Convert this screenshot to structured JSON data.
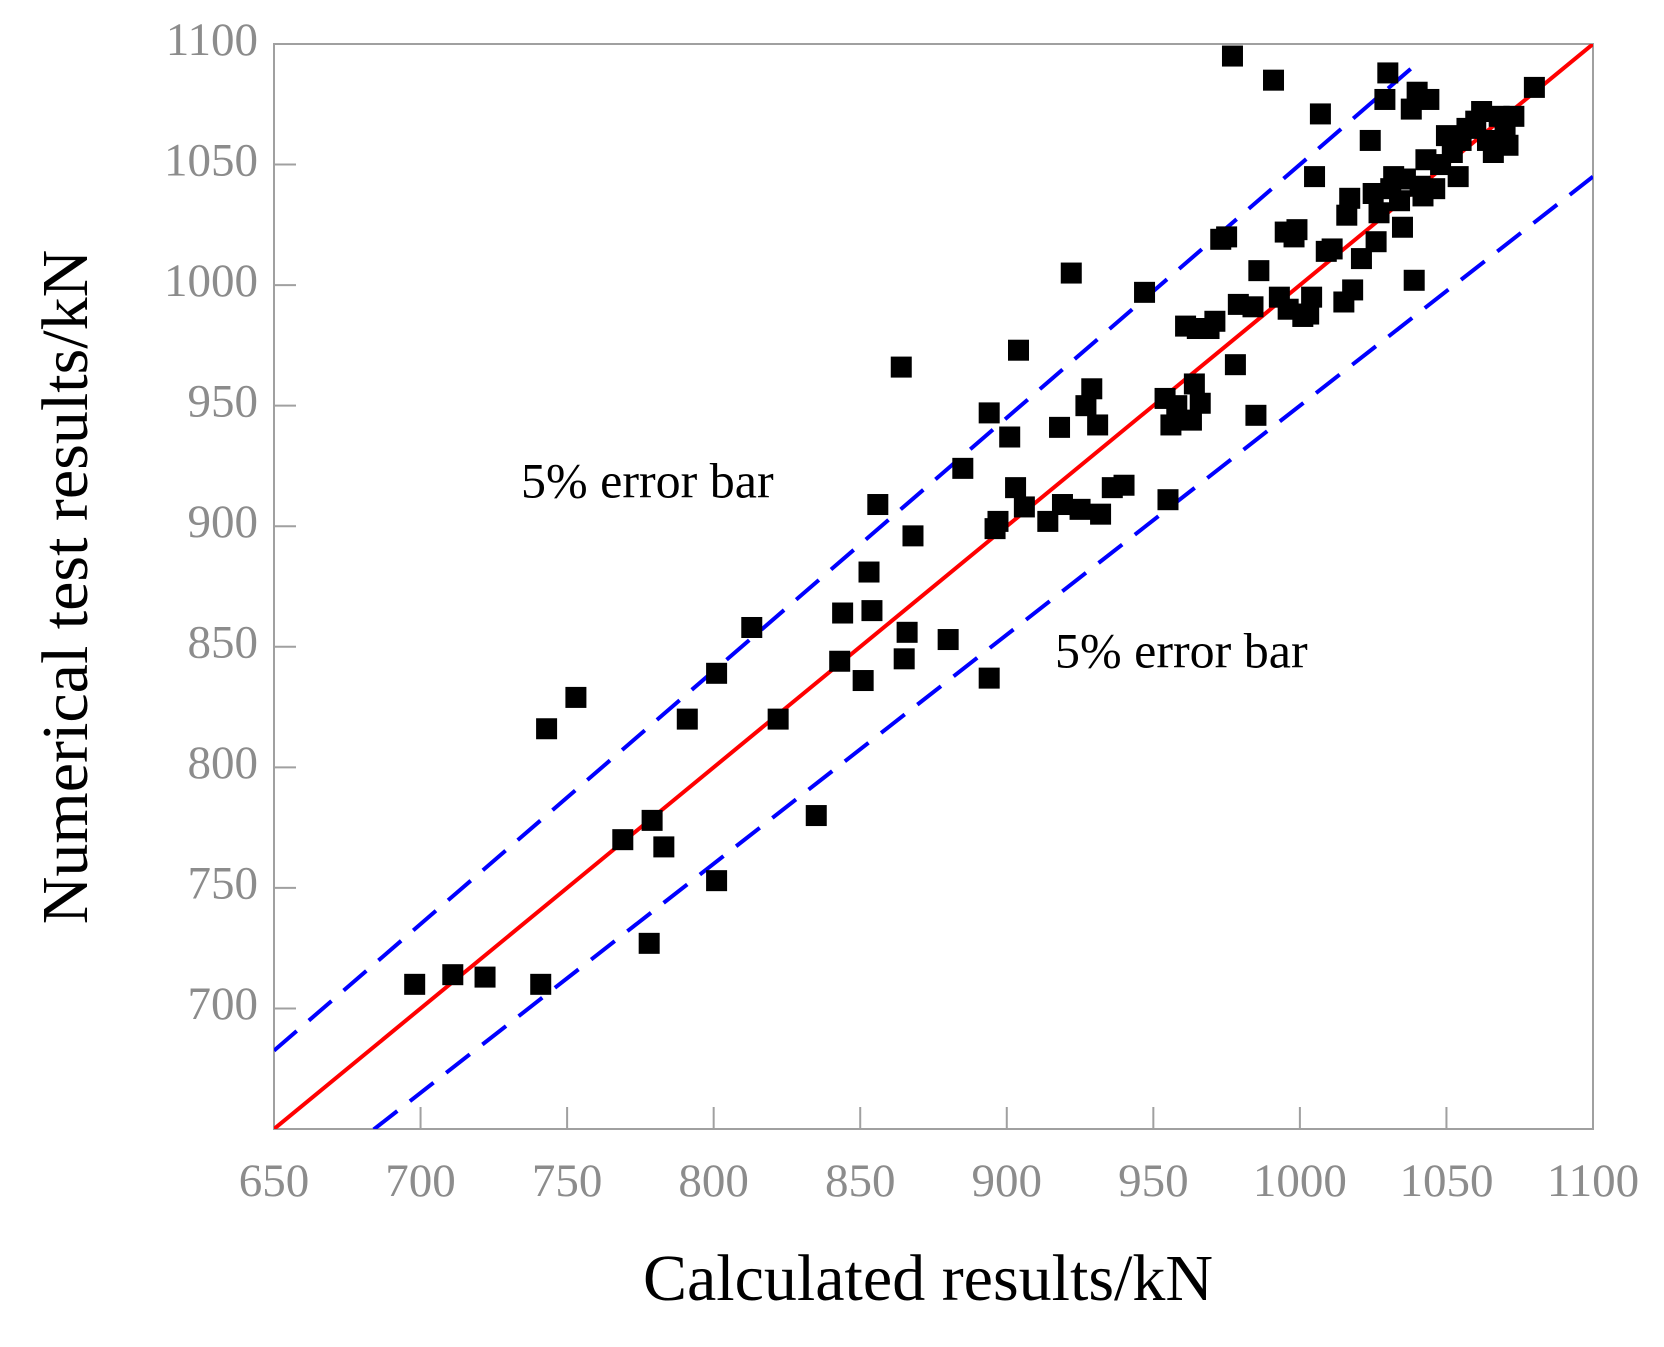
{
  "chart_data": {
    "type": "scatter",
    "x_label": "Calculated results/kN",
    "y_label": "Numerical test results/kN",
    "xlim": [
      650,
      1100
    ],
    "ylim": [
      650,
      1100
    ],
    "xticks": [
      650,
      700,
      750,
      800,
      850,
      900,
      950,
      1000,
      1050,
      1100
    ],
    "yticks": [
      700,
      750,
      800,
      850,
      900,
      950,
      1000,
      1050,
      1100
    ],
    "annotations": [
      "5% error bar",
      "5% error bar"
    ],
    "reference_lines": [
      {
        "x": [
          650,
          1100
        ],
        "values": [
          650,
          1100
        ],
        "color": "#ff0000",
        "style": "solid"
      },
      {
        "x": [
          650,
          1040
        ],
        "values": [
          682.5,
          1092
        ],
        "color": "#0000ff",
        "style": "dashed"
      },
      {
        "x": [
          684,
          1100
        ],
        "values": [
          649.8,
          1045
        ],
        "color": "#0000ff",
        "style": "dashed"
      }
    ],
    "series": [
      {
        "color": "#000000",
        "x": [
          698,
          711,
          722,
          741,
          743,
          753,
          769,
          779,
          783,
          778,
          791,
          801,
          801,
          813,
          822,
          835,
          843,
          844,
          851,
          853,
          854,
          856,
          864,
          865,
          866,
          868,
          880,
          885,
          894,
          894,
          896,
          897,
          901,
          903,
          904,
          906,
          914,
          918,
          919,
          922,
          925,
          927,
          929,
          931,
          932,
          936,
          940,
          947,
          954,
          955,
          956,
          958,
          961,
          963,
          964,
          965,
          966,
          969,
          971,
          973,
          975,
          977,
          978,
          979,
          984,
          985,
          986,
          991,
          993,
          995,
          996,
          998,
          999,
          1001,
          1003,
          1004,
          1005,
          1007,
          1009,
          1011,
          1015,
          1016,
          1017,
          1018,
          1021,
          1024,
          1025,
          1026,
          1027,
          1029,
          1030,
          1031,
          1032,
          1034,
          1035,
          1036,
          1038,
          1039,
          1040,
          1041,
          1042,
          1043,
          1044,
          1046,
          1048,
          1050,
          1052,
          1054,
          1055,
          1057,
          1060,
          1062,
          1064,
          1066,
          1068,
          1070,
          1071,
          1073,
          1080
        ],
        "values": [
          710,
          714,
          713,
          710,
          816,
          829,
          770,
          778,
          767,
          727,
          820,
          753,
          839,
          858,
          820,
          780,
          844,
          864,
          836,
          881,
          865,
          909,
          966,
          845,
          856,
          896,
          853,
          924,
          947,
          837,
          899,
          902,
          937,
          916,
          973,
          908,
          902,
          941,
          909,
          1005,
          907,
          950,
          957,
          942,
          905,
          916,
          917,
          997,
          953,
          911,
          942,
          950,
          983,
          944,
          959,
          982,
          951,
          982,
          985,
          1019,
          1020,
          1095,
          967,
          992,
          991,
          946,
          1006,
          1085,
          995,
          1022,
          990,
          1020,
          1023,
          987,
          988,
          995,
          1045,
          1071,
          1014,
          1015,
          993,
          1029,
          1036,
          998,
          1011,
          1060,
          1038,
          1018,
          1030,
          1077,
          1088,
          1040,
          1045,
          1035,
          1024,
          1044,
          1073,
          1002,
          1080,
          1041,
          1037,
          1052,
          1077,
          1040,
          1050,
          1062,
          1055,
          1045,
          1060,
          1065,
          1068,
          1072,
          1060,
          1055,
          1070,
          1065,
          1058,
          1070,
          1082
        ]
      }
    ]
  }
}
